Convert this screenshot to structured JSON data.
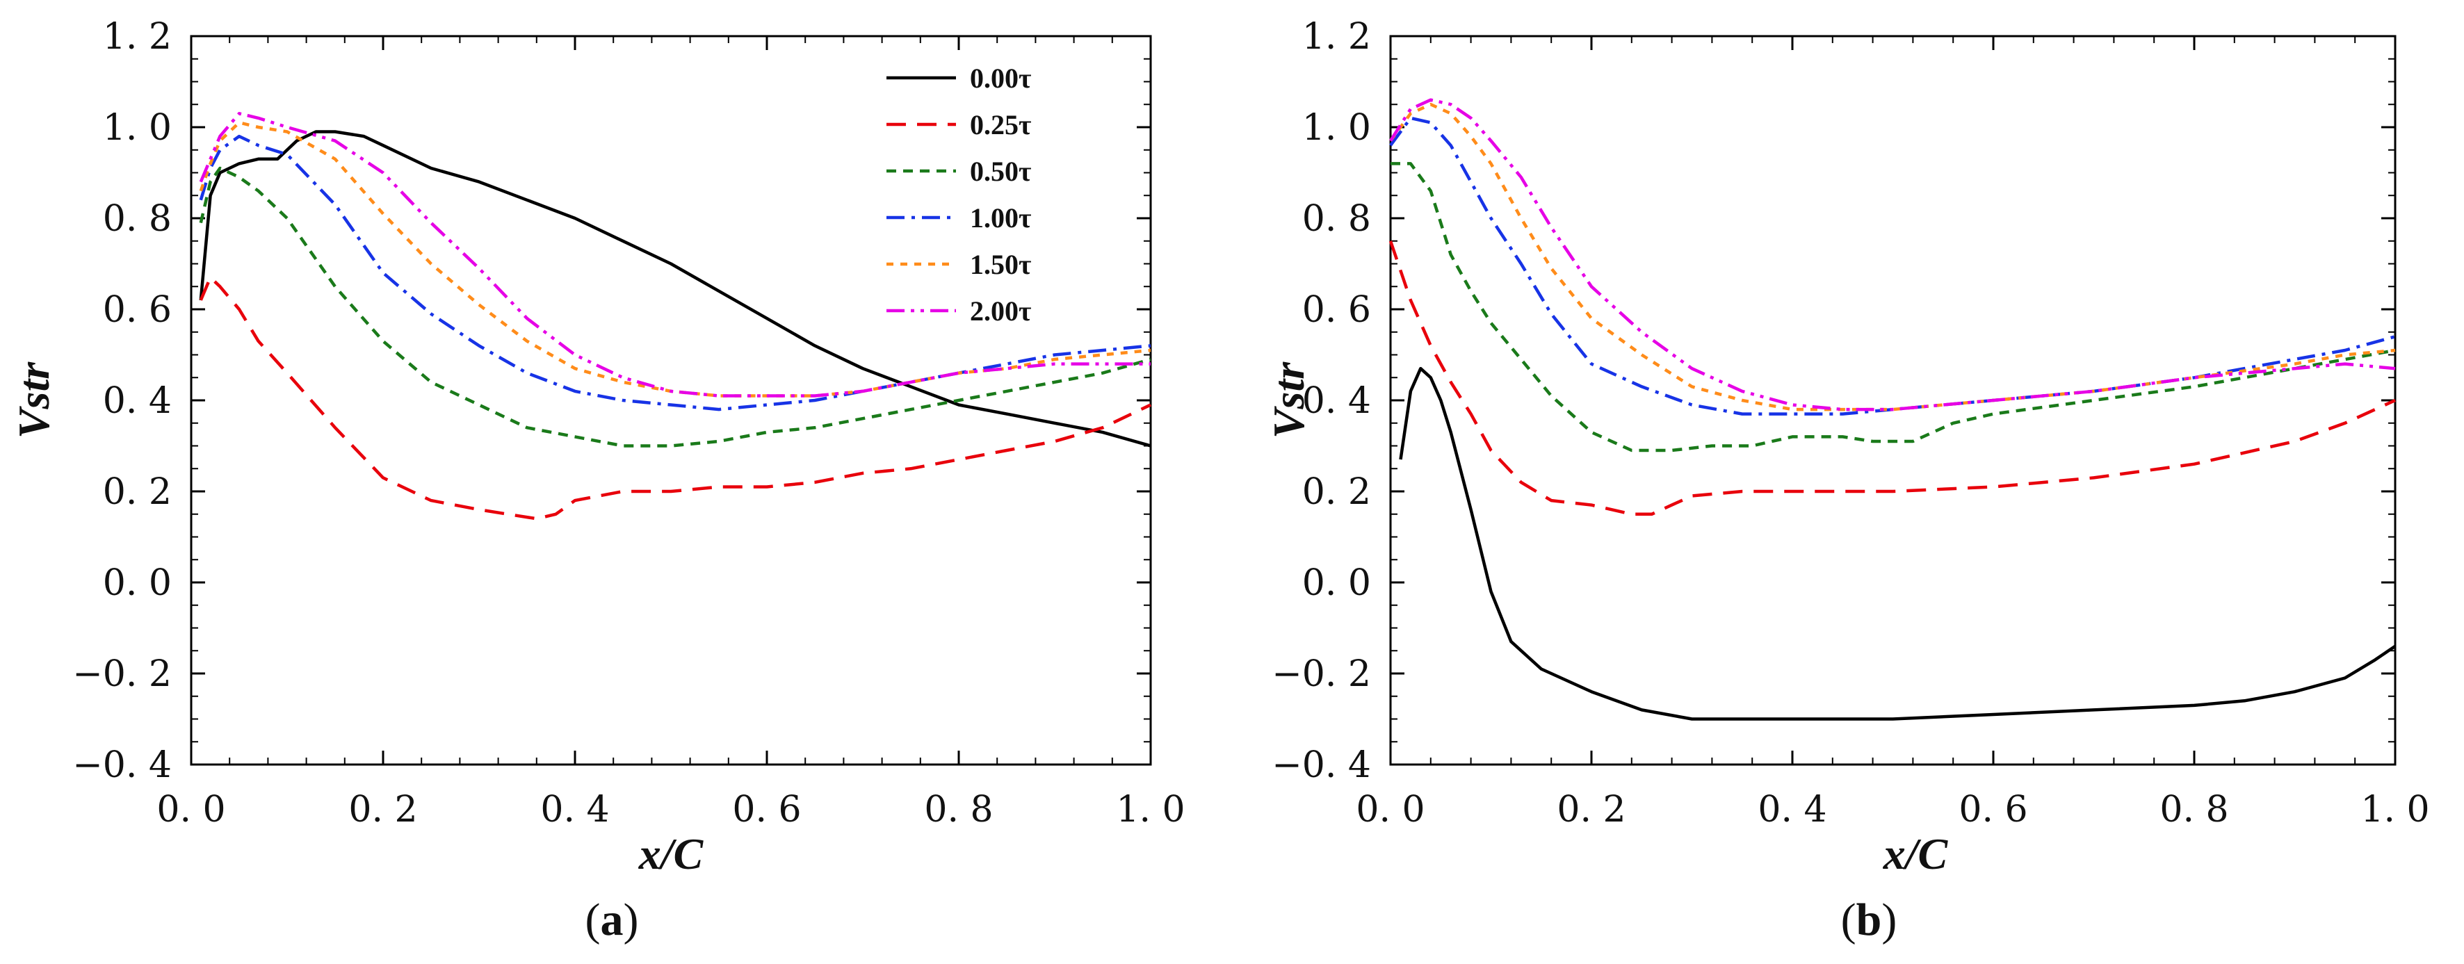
{
  "chart_data": [
    {
      "type": "line",
      "panel": "(a)",
      "panel_letter": "a",
      "xlabel": "x/C",
      "ylabel": "Vstr",
      "xlim": [
        0.0,
        1.0
      ],
      "ylim": [
        -0.4,
        1.2
      ],
      "xticks": [
        0.0,
        0.2,
        0.4,
        0.6,
        0.8,
        1.0
      ],
      "xtick_labels": [
        "0. 0",
        "0. 2",
        "0. 4",
        "0. 6",
        "0. 8",
        "1. 0"
      ],
      "yticks": [
        -0.4,
        -0.2,
        0.0,
        0.2,
        0.4,
        0.6,
        0.8,
        1.0,
        1.2
      ],
      "ytick_labels": [
        "−0. 4",
        "−0. 2",
        "0. 0",
        "0. 2",
        "0. 4",
        "0. 6",
        "0. 8",
        "1. 0",
        "1. 2"
      ],
      "legend_position": "top-right",
      "series": [
        {
          "name": "0.00τ",
          "color": "#000000",
          "dash": "solid",
          "x": [
            0.01,
            0.02,
            0.03,
            0.05,
            0.07,
            0.09,
            0.11,
            0.13,
            0.15,
            0.18,
            0.2,
            0.25,
            0.3,
            0.35,
            0.4,
            0.45,
            0.5,
            0.55,
            0.6,
            0.65,
            0.7,
            0.75,
            0.8,
            0.85,
            0.9,
            0.95,
            1.0
          ],
          "y": [
            0.62,
            0.85,
            0.9,
            0.92,
            0.93,
            0.93,
            0.97,
            0.99,
            0.99,
            0.98,
            0.96,
            0.91,
            0.88,
            0.84,
            0.8,
            0.75,
            0.7,
            0.64,
            0.58,
            0.52,
            0.47,
            0.43,
            0.39,
            0.37,
            0.35,
            0.33,
            0.3
          ]
        },
        {
          "name": "0.25τ",
          "color": "#e8000b",
          "dash": "long-dash",
          "x": [
            0.01,
            0.02,
            0.03,
            0.05,
            0.07,
            0.1,
            0.15,
            0.2,
            0.25,
            0.3,
            0.33,
            0.36,
            0.38,
            0.4,
            0.45,
            0.5,
            0.55,
            0.6,
            0.65,
            0.7,
            0.75,
            0.8,
            0.85,
            0.9,
            0.95,
            1.0
          ],
          "y": [
            0.62,
            0.67,
            0.65,
            0.6,
            0.53,
            0.46,
            0.34,
            0.23,
            0.18,
            0.16,
            0.15,
            0.14,
            0.15,
            0.18,
            0.2,
            0.2,
            0.21,
            0.21,
            0.22,
            0.24,
            0.25,
            0.27,
            0.29,
            0.31,
            0.34,
            0.39
          ]
        },
        {
          "name": "0.50τ",
          "color": "#1a7a1a",
          "dash": "short-dash",
          "x": [
            0.01,
            0.02,
            0.03,
            0.05,
            0.07,
            0.1,
            0.15,
            0.2,
            0.25,
            0.3,
            0.35,
            0.4,
            0.45,
            0.5,
            0.55,
            0.6,
            0.65,
            0.7,
            0.75,
            0.8,
            0.85,
            0.9,
            0.95,
            1.0
          ],
          "y": [
            0.79,
            0.88,
            0.91,
            0.89,
            0.86,
            0.8,
            0.65,
            0.53,
            0.44,
            0.39,
            0.34,
            0.32,
            0.3,
            0.3,
            0.31,
            0.33,
            0.34,
            0.36,
            0.38,
            0.4,
            0.42,
            0.44,
            0.46,
            0.49
          ]
        },
        {
          "name": "1.00τ",
          "color": "#1733e6",
          "dash": "dash-dot",
          "x": [
            0.01,
            0.02,
            0.03,
            0.05,
            0.07,
            0.1,
            0.15,
            0.2,
            0.25,
            0.3,
            0.35,
            0.4,
            0.45,
            0.5,
            0.55,
            0.6,
            0.65,
            0.7,
            0.75,
            0.8,
            0.85,
            0.9,
            0.95,
            1.0
          ],
          "y": [
            0.84,
            0.91,
            0.95,
            0.98,
            0.96,
            0.94,
            0.83,
            0.68,
            0.59,
            0.52,
            0.46,
            0.42,
            0.4,
            0.39,
            0.38,
            0.39,
            0.4,
            0.42,
            0.44,
            0.46,
            0.48,
            0.5,
            0.51,
            0.52
          ]
        },
        {
          "name": "1.50τ",
          "color": "#ff8c1a",
          "dash": "dotted",
          "x": [
            0.01,
            0.02,
            0.03,
            0.05,
            0.07,
            0.1,
            0.15,
            0.2,
            0.25,
            0.3,
            0.35,
            0.4,
            0.45,
            0.5,
            0.55,
            0.6,
            0.65,
            0.7,
            0.75,
            0.8,
            0.85,
            0.9,
            0.95,
            1.0
          ],
          "y": [
            0.86,
            0.92,
            0.97,
            1.01,
            1.0,
            0.99,
            0.93,
            0.81,
            0.7,
            0.61,
            0.53,
            0.47,
            0.44,
            0.42,
            0.41,
            0.41,
            0.41,
            0.42,
            0.44,
            0.46,
            0.47,
            0.49,
            0.5,
            0.51
          ]
        },
        {
          "name": "2.00τ",
          "color": "#e600e6",
          "dash": "dash-dot-dot",
          "x": [
            0.01,
            0.02,
            0.03,
            0.05,
            0.07,
            0.1,
            0.15,
            0.2,
            0.25,
            0.3,
            0.35,
            0.4,
            0.45,
            0.5,
            0.55,
            0.6,
            0.65,
            0.7,
            0.75,
            0.8,
            0.85,
            0.9,
            0.95,
            1.0
          ],
          "y": [
            0.88,
            0.93,
            0.98,
            1.03,
            1.02,
            1.0,
            0.97,
            0.9,
            0.79,
            0.69,
            0.58,
            0.5,
            0.45,
            0.42,
            0.41,
            0.41,
            0.41,
            0.42,
            0.44,
            0.46,
            0.47,
            0.48,
            0.48,
            0.48
          ]
        }
      ]
    },
    {
      "type": "line",
      "panel": "(b)",
      "panel_letter": "b",
      "xlabel": "x/C",
      "ylabel": "Vstr",
      "xlim": [
        0.0,
        1.0
      ],
      "ylim": [
        -0.4,
        1.2
      ],
      "xticks": [
        0.0,
        0.2,
        0.4,
        0.6,
        0.8,
        1.0
      ],
      "xtick_labels": [
        "0. 0",
        "0. 2",
        "0. 4",
        "0. 6",
        "0. 8",
        "1. 0"
      ],
      "yticks": [
        -0.4,
        -0.2,
        0.0,
        0.2,
        0.4,
        0.6,
        0.8,
        1.0,
        1.2
      ],
      "ytick_labels": [
        "−0. 4",
        "−0. 2",
        "0. 0",
        "0. 2",
        "0. 4",
        "0. 6",
        "0. 8",
        "1. 0",
        "1. 2"
      ],
      "series": [
        {
          "name": "0.00τ",
          "color": "#000000",
          "dash": "solid",
          "x": [
            0.01,
            0.02,
            0.03,
            0.04,
            0.05,
            0.06,
            0.08,
            0.1,
            0.12,
            0.15,
            0.2,
            0.25,
            0.3,
            0.4,
            0.5,
            0.6,
            0.7,
            0.8,
            0.85,
            0.9,
            0.95,
            0.98,
            1.0
          ],
          "y": [
            0.27,
            0.42,
            0.47,
            0.45,
            0.4,
            0.33,
            0.16,
            -0.02,
            -0.13,
            -0.19,
            -0.24,
            -0.28,
            -0.3,
            -0.3,
            -0.3,
            -0.29,
            -0.28,
            -0.27,
            -0.26,
            -0.24,
            -0.21,
            -0.17,
            -0.14
          ]
        },
        {
          "name": "0.25τ",
          "color": "#e8000b",
          "dash": "long-dash",
          "x": [
            0.0,
            0.02,
            0.04,
            0.06,
            0.08,
            0.1,
            0.13,
            0.16,
            0.2,
            0.24,
            0.26,
            0.28,
            0.3,
            0.35,
            0.4,
            0.5,
            0.6,
            0.7,
            0.8,
            0.9,
            0.95,
            1.0
          ],
          "y": [
            0.75,
            0.62,
            0.52,
            0.44,
            0.37,
            0.29,
            0.22,
            0.18,
            0.17,
            0.15,
            0.15,
            0.17,
            0.19,
            0.2,
            0.2,
            0.2,
            0.21,
            0.23,
            0.26,
            0.31,
            0.35,
            0.4
          ]
        },
        {
          "name": "0.50τ",
          "color": "#1a7a1a",
          "dash": "short-dash",
          "x": [
            0.0,
            0.02,
            0.04,
            0.06,
            0.08,
            0.1,
            0.13,
            0.16,
            0.2,
            0.24,
            0.28,
            0.32,
            0.36,
            0.4,
            0.45,
            0.48,
            0.52,
            0.56,
            0.6,
            0.7,
            0.8,
            0.9,
            1.0
          ],
          "y": [
            0.92,
            0.92,
            0.86,
            0.72,
            0.64,
            0.57,
            0.49,
            0.41,
            0.33,
            0.29,
            0.29,
            0.3,
            0.3,
            0.32,
            0.32,
            0.31,
            0.31,
            0.35,
            0.37,
            0.4,
            0.43,
            0.47,
            0.51
          ]
        },
        {
          "name": "1.00τ",
          "color": "#1733e6",
          "dash": "dash-dot",
          "x": [
            0.0,
            0.02,
            0.04,
            0.06,
            0.08,
            0.1,
            0.13,
            0.16,
            0.2,
            0.25,
            0.3,
            0.35,
            0.4,
            0.45,
            0.5,
            0.6,
            0.7,
            0.8,
            0.9,
            0.95,
            1.0
          ],
          "y": [
            0.96,
            1.02,
            1.01,
            0.96,
            0.88,
            0.8,
            0.7,
            0.59,
            0.48,
            0.43,
            0.39,
            0.37,
            0.37,
            0.37,
            0.38,
            0.4,
            0.42,
            0.45,
            0.49,
            0.51,
            0.54
          ]
        },
        {
          "name": "1.50τ",
          "color": "#ff8c1a",
          "dash": "dotted",
          "x": [
            0.0,
            0.02,
            0.04,
            0.06,
            0.08,
            0.1,
            0.13,
            0.16,
            0.2,
            0.25,
            0.3,
            0.35,
            0.4,
            0.45,
            0.5,
            0.6,
            0.7,
            0.8,
            0.9,
            0.95,
            1.0
          ],
          "y": [
            0.97,
            1.03,
            1.05,
            1.03,
            0.98,
            0.92,
            0.8,
            0.69,
            0.58,
            0.5,
            0.43,
            0.4,
            0.38,
            0.38,
            0.38,
            0.4,
            0.42,
            0.45,
            0.48,
            0.5,
            0.51
          ]
        },
        {
          "name": "2.00τ",
          "color": "#e600e6",
          "dash": "dash-dot-dot",
          "x": [
            0.0,
            0.02,
            0.04,
            0.06,
            0.08,
            0.1,
            0.13,
            0.16,
            0.2,
            0.25,
            0.3,
            0.35,
            0.4,
            0.45,
            0.5,
            0.6,
            0.7,
            0.8,
            0.9,
            0.95,
            1.0
          ],
          "y": [
            0.97,
            1.04,
            1.06,
            1.05,
            1.02,
            0.97,
            0.89,
            0.78,
            0.65,
            0.55,
            0.47,
            0.42,
            0.39,
            0.38,
            0.38,
            0.4,
            0.42,
            0.45,
            0.47,
            0.48,
            0.47
          ]
        }
      ]
    }
  ]
}
